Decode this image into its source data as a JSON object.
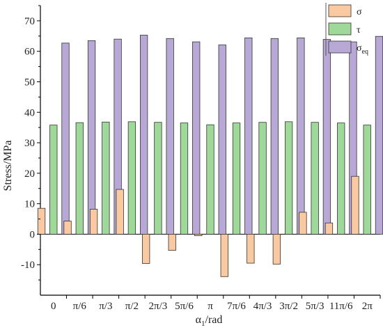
{
  "colors": {
    "sigma": "#F9C9A1",
    "tau": "#9ED99A",
    "sigma_eq": "#B8A8D6",
    "stroke": "#333333",
    "axis": "#000000"
  },
  "chart_data": {
    "type": "bar",
    "xlabel": "α1/rad",
    "ylabel": "Stress/MPa",
    "ylim": [
      -20,
      75
    ],
    "yticks": [
      -10,
      0,
      10,
      20,
      30,
      40,
      50,
      60,
      70
    ],
    "ytick_labels": [
      "-10",
      "0",
      "10",
      "20",
      "30",
      "40",
      "50",
      "60",
      "70"
    ],
    "categories": [
      "0",
      "π/6",
      "π/3",
      "π/2",
      "2π/3",
      "5π/6",
      "π",
      "7π/6",
      "4π/3",
      "3π/2",
      "5π/3",
      "11π/6",
      "2π"
    ],
    "series": [
      {
        "name": "σ",
        "values": [
          8.5,
          4.3,
          8.2,
          14.7,
          -9.6,
          -5.3,
          -0.5,
          -13.9,
          -9.5,
          -9.8,
          7.2,
          3.7,
          19.0
        ]
      },
      {
        "name": "τ",
        "values": [
          35.8,
          36.6,
          36.8,
          36.9,
          36.7,
          36.5,
          35.9,
          36.5,
          36.7,
          36.9,
          36.7,
          36.5,
          35.8
        ]
      },
      {
        "name": "σeq",
        "values": [
          62.7,
          63.5,
          64.0,
          65.3,
          64.2,
          63.1,
          62.1,
          64.4,
          64.2,
          64.4,
          63.9,
          63.1,
          64.9
        ]
      }
    ],
    "legend": {
      "position": "top-right",
      "labels": [
        "σ",
        "τ",
        "σ"
      ],
      "subscripts": [
        "",
        "",
        "eq"
      ]
    },
    "grid": false
  }
}
